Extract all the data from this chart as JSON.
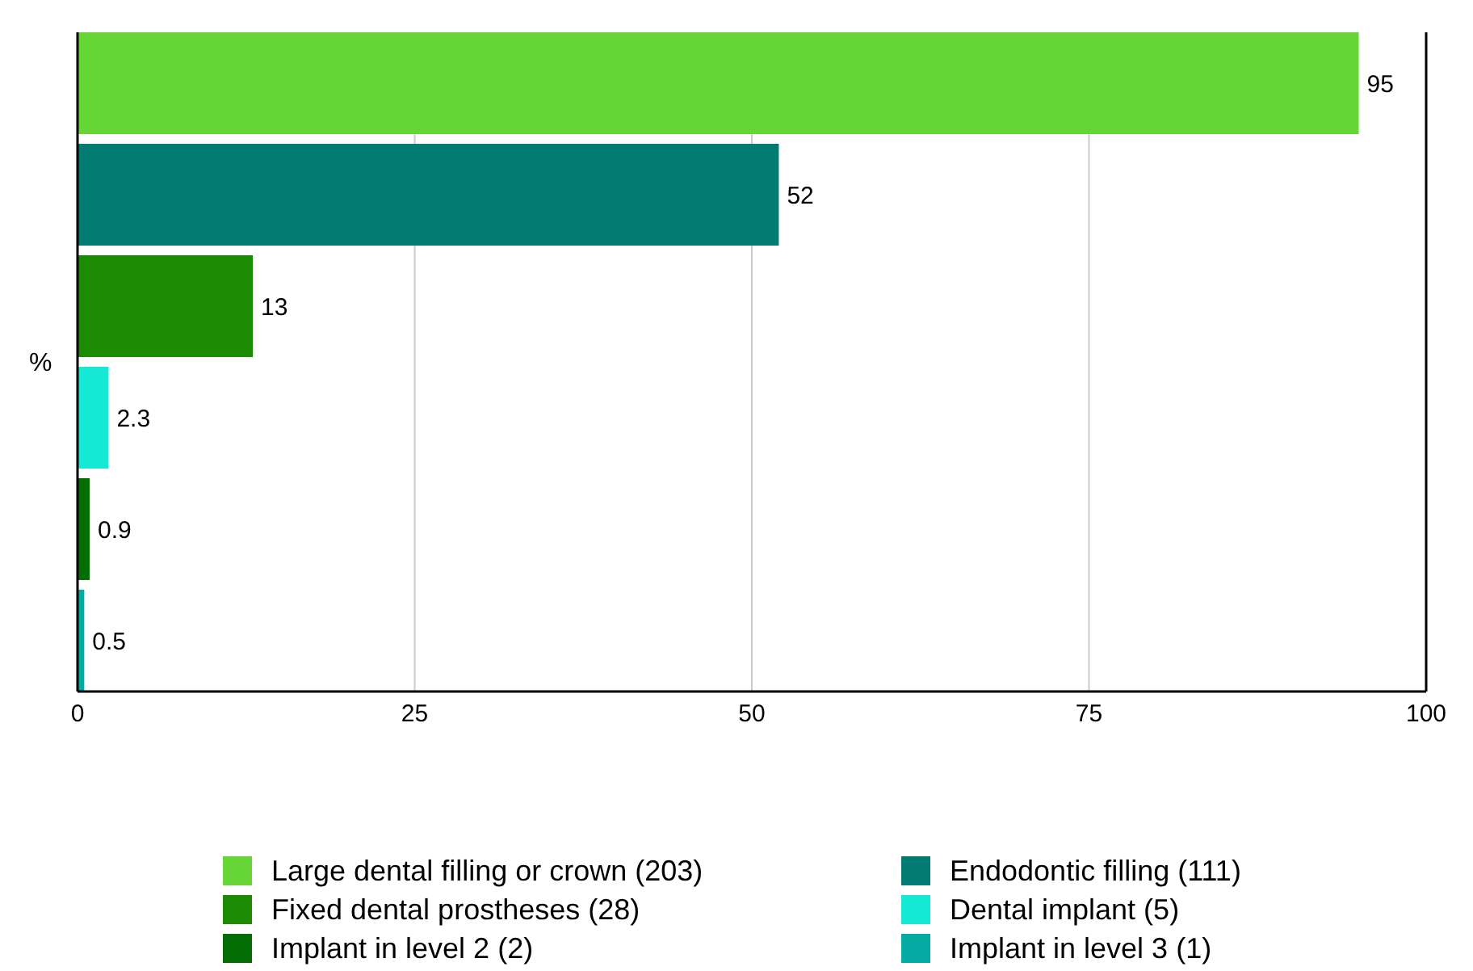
{
  "chart_data": {
    "type": "bar",
    "orientation": "horizontal",
    "ylabel": "%",
    "categories": [
      null
    ],
    "series": [
      {
        "name": "Large dental filling or crown (203)",
        "color": "#66d636",
        "values": [
          95
        ]
      },
      {
        "name": "Endodontic filling (111)",
        "color": "#017a72",
        "values": [
          52
        ]
      },
      {
        "name": "Fixed dental prostheses (28)",
        "color": "#1d8a04",
        "values": [
          13
        ]
      },
      {
        "name": "Dental implant (5)",
        "color": "#15e8d4",
        "values": [
          2.3
        ]
      },
      {
        "name": "Implant in level 2 (2)",
        "color": "#046e04",
        "values": [
          0.9
        ]
      },
      {
        "name": "Implant in level 3 (1)",
        "color": "#05aba2",
        "values": [
          0.5
        ]
      }
    ],
    "xlim": [
      0,
      100
    ],
    "xticks": [
      0,
      25,
      50,
      75,
      100
    ],
    "grid": "x",
    "data_labels": true,
    "legend": "bottom"
  }
}
